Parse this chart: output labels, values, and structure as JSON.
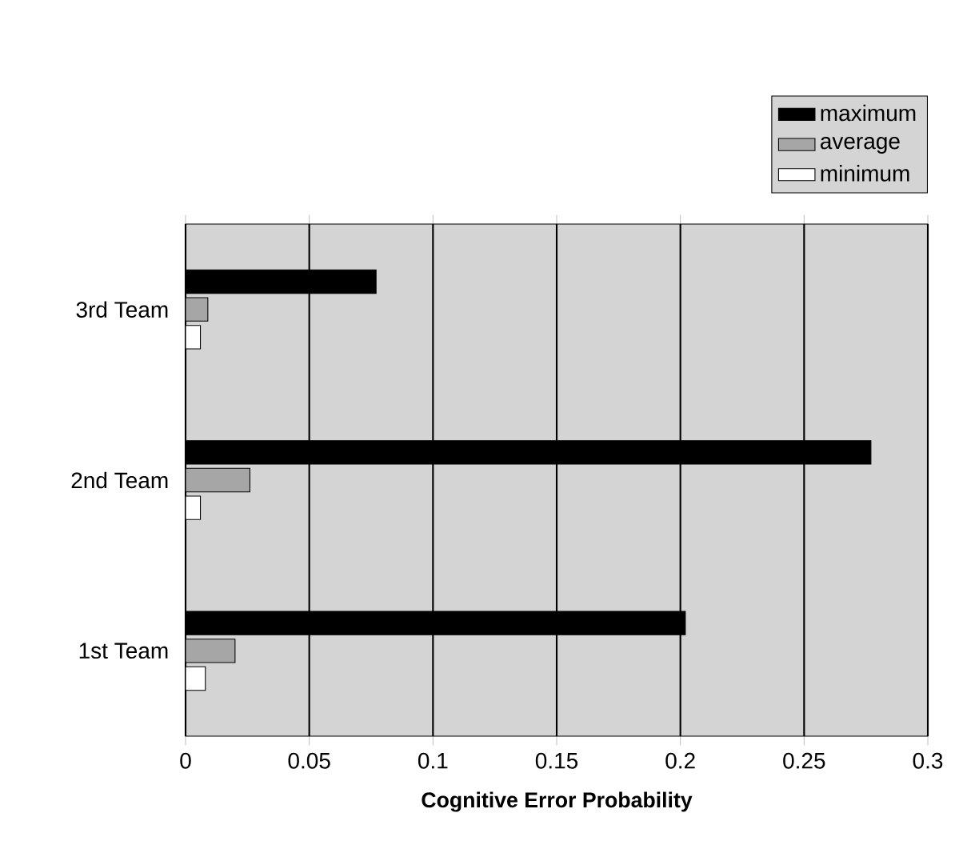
{
  "chart_data": {
    "type": "bar",
    "orientation": "horizontal",
    "xlabel": "Cognitive Error Probability",
    "categories": [
      "3rd Team",
      "2nd Team",
      "1st Team"
    ],
    "series": [
      {
        "name": "maximum",
        "color": "#000000",
        "values": [
          0.077,
          0.277,
          0.202
        ]
      },
      {
        "name": "average",
        "color": "#a6a6a6",
        "values": [
          0.009,
          0.026,
          0.02
        ]
      },
      {
        "name": "minimum",
        "color": "#ffffff",
        "values": [
          0.006,
          0.006,
          0.008
        ]
      }
    ],
    "xlim": [
      0,
      0.3
    ],
    "xticks": [
      0,
      0.05,
      0.1,
      0.15,
      0.2,
      0.25,
      0.3
    ],
    "grid": "x",
    "legend": "top right"
  }
}
